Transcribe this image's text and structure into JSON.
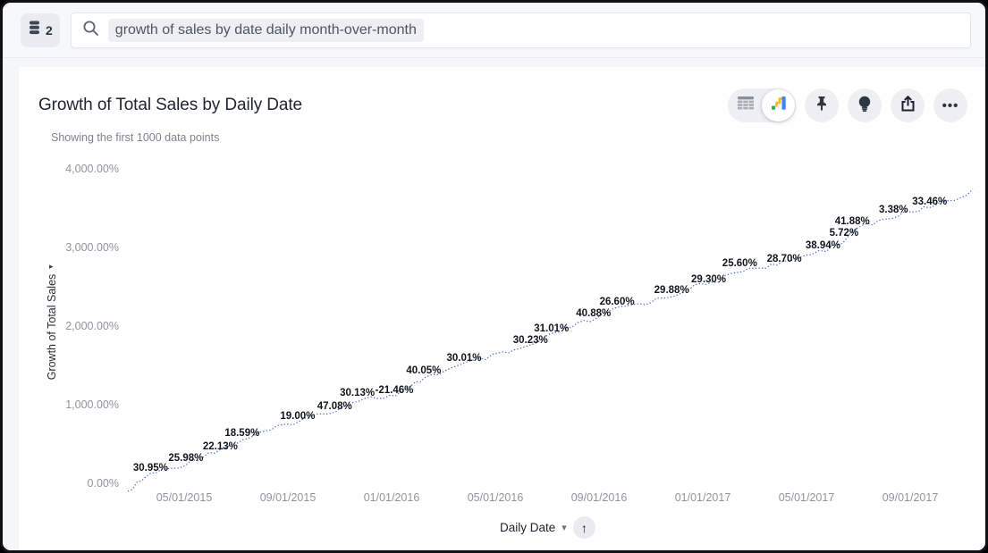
{
  "colors": {
    "line": "#3d65cf",
    "card_bg": "#ffffff",
    "page_bg": "#f5f6f8",
    "tick_text": "#8f959f",
    "label_text": "#10141b"
  },
  "icons": {
    "source": "database-icon",
    "search": "search-icon",
    "table_view": "table-icon",
    "chart_view": "chart-icon",
    "pin": "pin-icon",
    "insights": "lightbulb-icon",
    "share": "share-icon",
    "more_glyph": "•••",
    "axis_arrow_glyph": "▸",
    "chevron_down_glyph": "▾",
    "sort_up_glyph": "↑"
  },
  "topbar": {
    "source_count": "2",
    "search_query": "growth of sales by date daily month-over-month"
  },
  "header": {
    "title": "Growth of Total Sales by Daily Date",
    "subtitle": "Showing the first 1000 data points"
  },
  "x_axis_control": {
    "label": "Daily Date"
  },
  "chart_data": {
    "type": "line",
    "title": "Growth of Total Sales by Daily Date",
    "note": "Showing the first 1000 data points",
    "ylabel": "Growth of Total Sales",
    "xlabel": "Daily Date",
    "ylim": [
      0,
      4000
    ],
    "grid": false,
    "line_style": "dotted",
    "y_ticks": [
      {
        "label": "0.00%",
        "value": 0
      },
      {
        "label": "1,000.00%",
        "value": 1000
      },
      {
        "label": "2,000.00%",
        "value": 2000
      },
      {
        "label": "3,000.00%",
        "value": 3000
      },
      {
        "label": "4,000.00%",
        "value": 4000
      }
    ],
    "x_ticks": [
      "05/01/2015",
      "09/01/2015",
      "01/01/2016",
      "05/01/2016",
      "09/01/2016",
      "01/01/2017",
      "05/01/2017",
      "09/01/2017"
    ],
    "series_name": "Growth of Total Sales",
    "point_labels": [
      {
        "text": "30.95%",
        "tx": 0.027,
        "ty": 0.952
      },
      {
        "text": "25.98%",
        "tx": 0.069,
        "ty": 0.92
      },
      {
        "text": "22.13%",
        "tx": 0.11,
        "ty": 0.884
      },
      {
        "text": "18.59%",
        "tx": 0.136,
        "ty": 0.841
      },
      {
        "text": "19.00%",
        "tx": 0.202,
        "ty": 0.787
      },
      {
        "text": "47.08%",
        "tx": 0.246,
        "ty": 0.756
      },
      {
        "text": "30.13%",
        "tx": 0.273,
        "ty": 0.713
      },
      {
        "text": "-21.46%",
        "tx": 0.317,
        "ty": 0.705
      },
      {
        "text": "40.05%",
        "tx": 0.352,
        "ty": 0.642
      },
      {
        "text": "30.01%",
        "tx": 0.4,
        "ty": 0.602
      },
      {
        "text": "30.23%",
        "tx": 0.479,
        "ty": 0.545
      },
      {
        "text": "31.01%",
        "tx": 0.504,
        "ty": 0.509
      },
      {
        "text": "40.88%",
        "tx": 0.554,
        "ty": 0.46
      },
      {
        "text": "26.60%",
        "tx": 0.582,
        "ty": 0.423
      },
      {
        "text": "29.88%",
        "tx": 0.647,
        "ty": 0.386
      },
      {
        "text": "29.30%",
        "tx": 0.691,
        "ty": 0.352
      },
      {
        "text": "25.60%",
        "tx": 0.728,
        "ty": 0.301
      },
      {
        "text": "28.70%",
        "tx": 0.781,
        "ty": 0.287
      },
      {
        "text": "38.94%",
        "tx": 0.827,
        "ty": 0.244
      },
      {
        "text": "5.72%",
        "tx": 0.852,
        "ty": 0.205
      },
      {
        "text": "41.88%",
        "tx": 0.862,
        "ty": 0.168
      },
      {
        "text": "3.38%",
        "tx": 0.911,
        "ty": 0.131
      },
      {
        "text": "33.46%",
        "tx": 0.954,
        "ty": 0.105
      }
    ],
    "line_points": [
      [
        0.0,
        -100
      ],
      [
        0.027,
        125
      ],
      [
        0.053,
        193
      ],
      [
        0.069,
        250
      ],
      [
        0.096,
        386
      ],
      [
        0.11,
        432
      ],
      [
        0.136,
        557
      ],
      [
        0.17,
        682
      ],
      [
        0.202,
        795
      ],
      [
        0.229,
        886
      ],
      [
        0.246,
        932
      ],
      [
        0.273,
        1068
      ],
      [
        0.317,
        1114
      ],
      [
        0.335,
        1227
      ],
      [
        0.352,
        1352
      ],
      [
        0.383,
        1455
      ],
      [
        0.4,
        1523
      ],
      [
        0.431,
        1614
      ],
      [
        0.457,
        1682
      ],
      [
        0.479,
        1761
      ],
      [
        0.504,
        1898
      ],
      [
        0.532,
        2023
      ],
      [
        0.554,
        2091
      ],
      [
        0.582,
        2239
      ],
      [
        0.612,
        2295
      ],
      [
        0.647,
        2398
      ],
      [
        0.67,
        2500
      ],
      [
        0.691,
        2545
      ],
      [
        0.728,
        2716
      ],
      [
        0.755,
        2761
      ],
      [
        0.781,
        2807
      ],
      [
        0.809,
        2932
      ],
      [
        0.827,
        2977
      ],
      [
        0.852,
        3114
      ],
      [
        0.862,
        3250
      ],
      [
        0.888,
        3330
      ],
      [
        0.911,
        3409
      ],
      [
        0.936,
        3477
      ],
      [
        0.954,
        3545
      ],
      [
        0.979,
        3614
      ],
      [
        1.0,
        3720
      ]
    ]
  }
}
